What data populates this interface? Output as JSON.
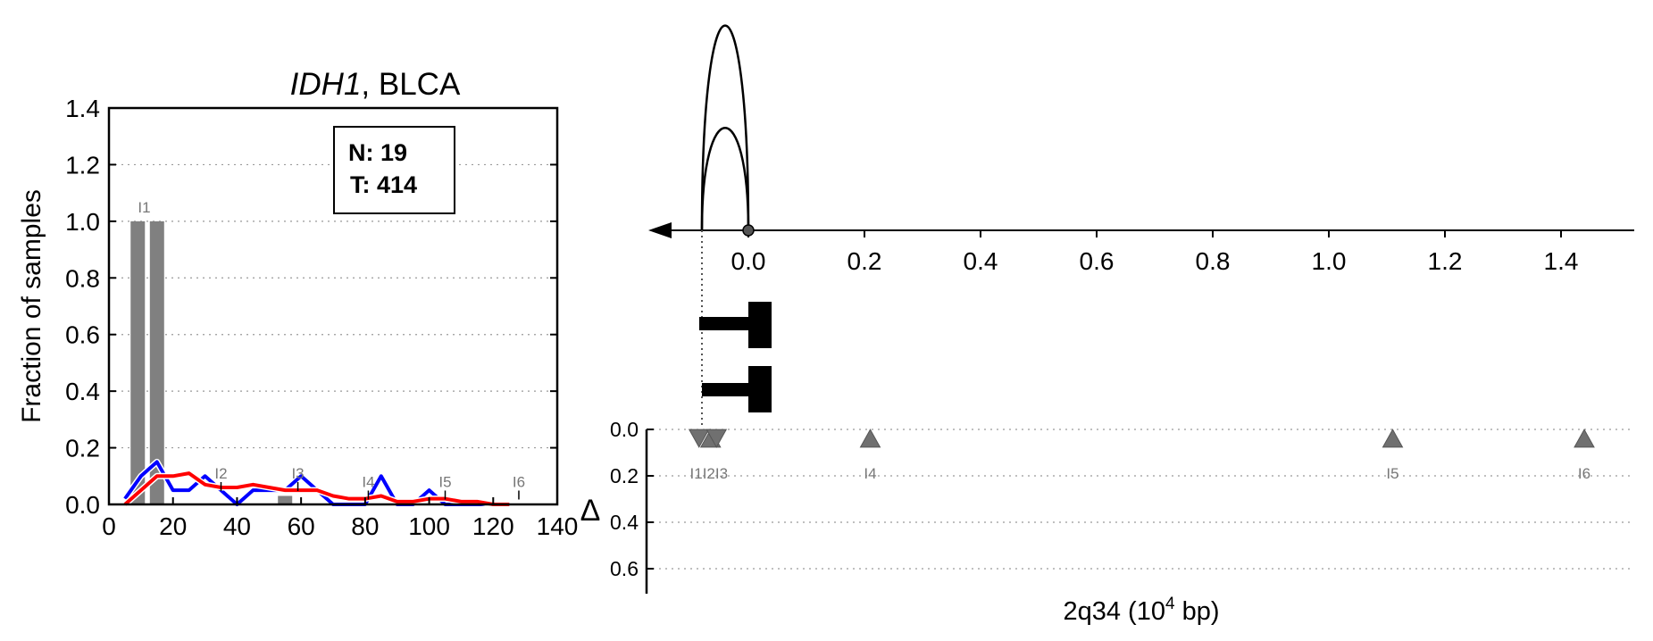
{
  "chart_data": [
    {
      "type": "bar",
      "title_gene": "IDH1",
      "title_rest": ", BLCA",
      "ylabel": "Fraction of samples",
      "xlim": [
        0,
        140
      ],
      "ylim": [
        0,
        1.4
      ],
      "x_ticks": [
        "0",
        "20",
        "40",
        "60",
        "80",
        "100",
        "120",
        "140"
      ],
      "y_ticks": [
        "0.0",
        "0.2",
        "0.4",
        "0.6",
        "0.8",
        "1.0",
        "1.2",
        "1.4"
      ],
      "grid": "horizontal dotted",
      "stats_box": {
        "n_label": "N: 19",
        "t_label": "T: 414"
      },
      "bars": [
        {
          "x": 9,
          "value": 1.0
        },
        {
          "x": 15,
          "value": 1.0
        },
        {
          "x": 55,
          "value": 0.03
        }
      ],
      "bar_color": "#808080",
      "markers": [
        {
          "label": "I1",
          "x": 11,
          "y": 1.0
        },
        {
          "label": "I2",
          "x": 35,
          "y": 0.06
        },
        {
          "label": "I3",
          "x": 59,
          "y": 0.06
        },
        {
          "label": "I4",
          "x": 81,
          "y": 0.03
        },
        {
          "label": "I5",
          "x": 105,
          "y": 0.03
        },
        {
          "label": "I6",
          "x": 128,
          "y": 0.03
        }
      ],
      "series": [
        {
          "color": "#0000ff",
          "x": [
            5,
            10,
            15,
            20,
            25,
            30,
            35,
            40,
            45,
            50,
            55,
            60,
            65,
            70,
            75,
            80,
            85,
            90,
            95,
            100,
            105,
            110,
            115,
            120,
            125
          ],
          "values": [
            0.02,
            0.1,
            0.15,
            0.05,
            0.05,
            0.1,
            0.05,
            0.0,
            0.05,
            0.05,
            0.05,
            0.1,
            0.05,
            0.0,
            0.0,
            0.0,
            0.1,
            0.0,
            0.0,
            0.05,
            0.0,
            0.0,
            0.0,
            0.0,
            0.0
          ]
        },
        {
          "color": "#ff0000",
          "x": [
            5,
            10,
            15,
            20,
            25,
            30,
            35,
            40,
            45,
            50,
            55,
            60,
            65,
            70,
            75,
            80,
            85,
            90,
            95,
            100,
            105,
            110,
            115,
            120,
            125
          ],
          "values": [
            0.0,
            0.05,
            0.1,
            0.1,
            0.11,
            0.07,
            0.06,
            0.06,
            0.07,
            0.06,
            0.05,
            0.05,
            0.05,
            0.03,
            0.02,
            0.02,
            0.03,
            0.01,
            0.01,
            0.02,
            0.02,
            0.01,
            0.01,
            0.0,
            0.0
          ]
        }
      ]
    },
    {
      "type": "scatter",
      "xlabel_main": "2q34 (10",
      "xlabel_sup": "4",
      "xlabel_end": " bp)",
      "top_axis": {
        "xlim": [
          -0.2,
          1.53
        ],
        "ticks": [
          0.0,
          0.2,
          0.4,
          0.6,
          0.8,
          1.0,
          1.2,
          1.4
        ],
        "tick_labels": [
          "0.0",
          "0.2",
          "0.4",
          "0.6",
          "0.8",
          "1.0",
          "1.2",
          "1.4"
        ],
        "arc_start": -0.08,
        "arc_end": 0.0,
        "arc_heights_norm": [
          1.0,
          0.5
        ]
      },
      "delta": {
        "ylabel": "Δ",
        "y_ticks": [
          "0.0",
          "0.2",
          "0.4",
          "0.6"
        ],
        "ylim": [
          0,
          0.7
        ],
        "points": [
          {
            "label": "I1",
            "x": -0.085,
            "delta": 0.0,
            "direction": "down"
          },
          {
            "label": "I2",
            "x": -0.065,
            "delta": 0.0,
            "direction": "up"
          },
          {
            "label": "I3",
            "x": -0.055,
            "delta": 0.0,
            "direction": "down"
          },
          {
            "label": "I4",
            "x": 0.21,
            "delta": 0.0,
            "direction": "up"
          },
          {
            "label": "I5",
            "x": 1.11,
            "delta": 0.0,
            "direction": "up"
          },
          {
            "label": "I6",
            "x": 1.44,
            "delta": 0.0,
            "direction": "up"
          }
        ],
        "point_labels": [
          "I1",
          "I2",
          "I3",
          "I4",
          "I5",
          "I6"
        ],
        "label_text": "I1I2I3"
      },
      "color": "#707070"
    }
  ]
}
